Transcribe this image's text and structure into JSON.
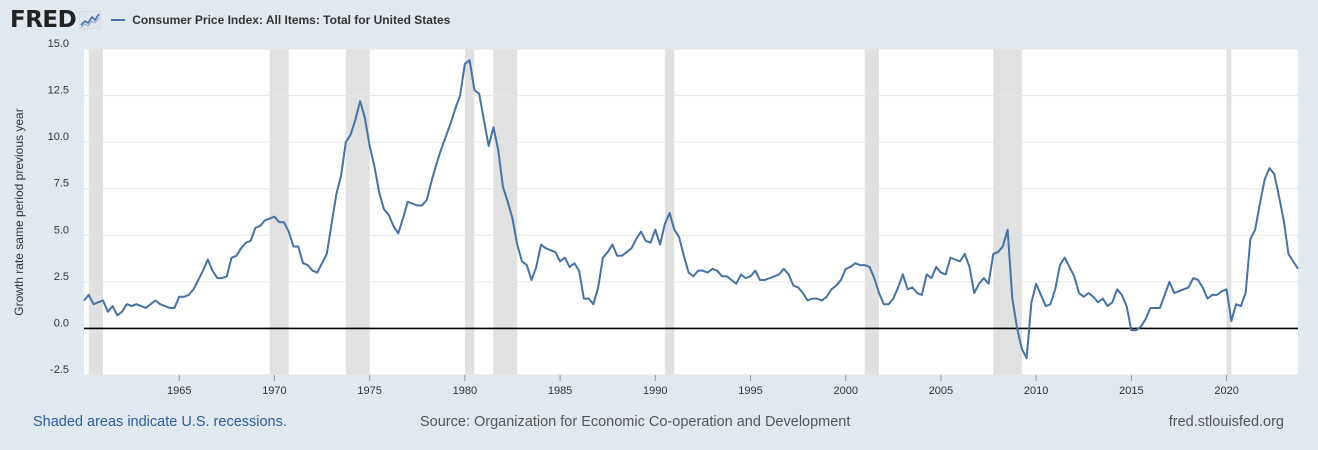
{
  "header": {
    "logo_text": "FRED",
    "logo_icon": "sparkline-chart-icon"
  },
  "footer": {
    "recessions_note": "Shaded areas indicate U.S. recessions.",
    "source": "Source: Organization for Economic Co-operation and Development",
    "url": "fred.stlouisfed.org"
  },
  "colors": {
    "background": "#e1e9f0",
    "plot_bg": "#ffffff",
    "series": "#4572a7",
    "recession": "#e1e1e1",
    "zero_line": "#000000"
  },
  "chart_data": {
    "type": "line",
    "title": "",
    "xlabel": "",
    "ylabel": "Growth rate same period previous year",
    "xlim": [
      1960.0,
      2023.75
    ],
    "ylim": [
      -2.5,
      15.0
    ],
    "yticks": [
      "15.0",
      "12.5",
      "10.0",
      "7.5",
      "5.0",
      "2.5",
      "0.0",
      "-2.5"
    ],
    "xticks": [
      "1965",
      "1970",
      "1975",
      "1980",
      "1985",
      "1990",
      "1995",
      "2000",
      "2005",
      "2010",
      "2015",
      "2020"
    ],
    "grid": true,
    "legend_position": "top-left",
    "recessions": [
      [
        1960.25,
        1961.0
      ],
      [
        1969.75,
        1970.75
      ],
      [
        1973.75,
        1975.0
      ],
      [
        1980.0,
        1980.5
      ],
      [
        1981.5,
        1982.75
      ],
      [
        1990.5,
        1991.0
      ],
      [
        2001.0,
        2001.75
      ],
      [
        2007.75,
        2009.25
      ],
      [
        2020.0,
        2020.25
      ]
    ],
    "series": [
      {
        "name": "Consumer Price Index: All Items: Total for United States",
        "values": [
          [
            1960.0,
            1.5
          ],
          [
            1960.25,
            1.8
          ],
          [
            1960.5,
            1.3
          ],
          [
            1960.75,
            1.4
          ],
          [
            1961.0,
            1.5
          ],
          [
            1961.25,
            0.9
          ],
          [
            1961.5,
            1.2
          ],
          [
            1961.75,
            0.7
          ],
          [
            1962.0,
            0.9
          ],
          [
            1962.25,
            1.3
          ],
          [
            1962.5,
            1.2
          ],
          [
            1962.75,
            1.3
          ],
          [
            1963.0,
            1.2
          ],
          [
            1963.25,
            1.1
          ],
          [
            1963.5,
            1.3
          ],
          [
            1963.75,
            1.5
          ],
          [
            1964.0,
            1.3
          ],
          [
            1964.25,
            1.2
          ],
          [
            1964.5,
            1.1
          ],
          [
            1964.75,
            1.1
          ],
          [
            1965.0,
            1.7
          ],
          [
            1965.25,
            1.7
          ],
          [
            1965.5,
            1.8
          ],
          [
            1965.75,
            2.1
          ],
          [
            1966.0,
            2.6
          ],
          [
            1966.25,
            3.1
          ],
          [
            1966.5,
            3.7
          ],
          [
            1966.75,
            3.1
          ],
          [
            1967.0,
            2.7
          ],
          [
            1967.25,
            2.7
          ],
          [
            1967.5,
            2.8
          ],
          [
            1967.75,
            3.8
          ],
          [
            1968.0,
            3.9
          ],
          [
            1968.25,
            4.3
          ],
          [
            1968.5,
            4.6
          ],
          [
            1968.75,
            4.7
          ],
          [
            1969.0,
            5.4
          ],
          [
            1969.25,
            5.5
          ],
          [
            1969.5,
            5.8
          ],
          [
            1969.75,
            5.9
          ],
          [
            1970.0,
            6.0
          ],
          [
            1970.25,
            5.7
          ],
          [
            1970.5,
            5.7
          ],
          [
            1970.75,
            5.2
          ],
          [
            1971.0,
            4.4
          ],
          [
            1971.25,
            4.4
          ],
          [
            1971.5,
            3.5
          ],
          [
            1971.75,
            3.4
          ],
          [
            1972.0,
            3.1
          ],
          [
            1972.25,
            3.0
          ],
          [
            1972.5,
            3.5
          ],
          [
            1972.75,
            4.0
          ],
          [
            1973.0,
            5.6
          ],
          [
            1973.25,
            7.2
          ],
          [
            1973.5,
            8.2
          ],
          [
            1973.75,
            10.0
          ],
          [
            1974.0,
            10.4
          ],
          [
            1974.25,
            11.2
          ],
          [
            1974.5,
            12.2
          ],
          [
            1974.75,
            11.3
          ],
          [
            1975.0,
            9.8
          ],
          [
            1975.25,
            8.7
          ],
          [
            1975.5,
            7.3
          ],
          [
            1975.75,
            6.4
          ],
          [
            1976.0,
            6.1
          ],
          [
            1976.25,
            5.5
          ],
          [
            1976.5,
            5.1
          ],
          [
            1976.75,
            5.9
          ],
          [
            1977.0,
            6.8
          ],
          [
            1977.25,
            6.7
          ],
          [
            1977.5,
            6.6
          ],
          [
            1977.75,
            6.6
          ],
          [
            1978.0,
            6.9
          ],
          [
            1978.25,
            7.9
          ],
          [
            1978.5,
            8.8
          ],
          [
            1978.75,
            9.6
          ],
          [
            1979.0,
            10.3
          ],
          [
            1979.25,
            11.0
          ],
          [
            1979.5,
            11.8
          ],
          [
            1979.75,
            12.5
          ],
          [
            1980.0,
            14.2
          ],
          [
            1980.25,
            14.4
          ],
          [
            1980.5,
            12.8
          ],
          [
            1980.75,
            12.6
          ],
          [
            1981.0,
            11.2
          ],
          [
            1981.25,
            9.8
          ],
          [
            1981.5,
            10.8
          ],
          [
            1981.75,
            9.6
          ],
          [
            1982.0,
            7.6
          ],
          [
            1982.25,
            6.8
          ],
          [
            1982.5,
            5.9
          ],
          [
            1982.75,
            4.5
          ],
          [
            1983.0,
            3.6
          ],
          [
            1983.25,
            3.4
          ],
          [
            1983.5,
            2.6
          ],
          [
            1983.75,
            3.3
          ],
          [
            1984.0,
            4.5
          ],
          [
            1984.25,
            4.3
          ],
          [
            1984.5,
            4.2
          ],
          [
            1984.75,
            4.1
          ],
          [
            1985.0,
            3.6
          ],
          [
            1985.25,
            3.8
          ],
          [
            1985.5,
            3.3
          ],
          [
            1985.75,
            3.5
          ],
          [
            1986.0,
            3.1
          ],
          [
            1986.25,
            1.6
          ],
          [
            1986.5,
            1.6
          ],
          [
            1986.75,
            1.3
          ],
          [
            1987.0,
            2.2
          ],
          [
            1987.25,
            3.8
          ],
          [
            1987.5,
            4.1
          ],
          [
            1987.75,
            4.5
          ],
          [
            1988.0,
            3.9
          ],
          [
            1988.25,
            3.9
          ],
          [
            1988.5,
            4.1
          ],
          [
            1988.75,
            4.3
          ],
          [
            1989.0,
            4.8
          ],
          [
            1989.25,
            5.2
          ],
          [
            1989.5,
            4.7
          ],
          [
            1989.75,
            4.6
          ],
          [
            1990.0,
            5.3
          ],
          [
            1990.25,
            4.5
          ],
          [
            1990.5,
            5.6
          ],
          [
            1990.75,
            6.2
          ],
          [
            1991.0,
            5.3
          ],
          [
            1991.25,
            4.9
          ],
          [
            1991.5,
            3.9
          ],
          [
            1991.75,
            3.0
          ],
          [
            1992.0,
            2.8
          ],
          [
            1992.25,
            3.1
          ],
          [
            1992.5,
            3.1
          ],
          [
            1992.75,
            3.0
          ],
          [
            1993.0,
            3.2
          ],
          [
            1993.25,
            3.1
          ],
          [
            1993.5,
            2.8
          ],
          [
            1993.75,
            2.8
          ],
          [
            1994.0,
            2.6
          ],
          [
            1994.25,
            2.4
          ],
          [
            1994.5,
            2.9
          ],
          [
            1994.75,
            2.7
          ],
          [
            1995.0,
            2.8
          ],
          [
            1995.25,
            3.1
          ],
          [
            1995.5,
            2.6
          ],
          [
            1995.75,
            2.6
          ],
          [
            1996.0,
            2.7
          ],
          [
            1996.25,
            2.8
          ],
          [
            1996.5,
            2.9
          ],
          [
            1996.75,
            3.2
          ],
          [
            1997.0,
            2.9
          ],
          [
            1997.25,
            2.3
          ],
          [
            1997.5,
            2.2
          ],
          [
            1997.75,
            1.9
          ],
          [
            1998.0,
            1.5
          ],
          [
            1998.25,
            1.6
          ],
          [
            1998.5,
            1.6
          ],
          [
            1998.75,
            1.5
          ],
          [
            1999.0,
            1.7
          ],
          [
            1999.25,
            2.1
          ],
          [
            1999.5,
            2.3
          ],
          [
            1999.75,
            2.6
          ],
          [
            2000.0,
            3.2
          ],
          [
            2000.25,
            3.3
          ],
          [
            2000.5,
            3.5
          ],
          [
            2000.75,
            3.4
          ],
          [
            2001.0,
            3.4
          ],
          [
            2001.25,
            3.3
          ],
          [
            2001.5,
            2.7
          ],
          [
            2001.75,
            1.9
          ],
          [
            2002.0,
            1.3
          ],
          [
            2002.25,
            1.3
          ],
          [
            2002.5,
            1.6
          ],
          [
            2002.75,
            2.2
          ],
          [
            2003.0,
            2.9
          ],
          [
            2003.25,
            2.1
          ],
          [
            2003.5,
            2.2
          ],
          [
            2003.75,
            1.9
          ],
          [
            2004.0,
            1.8
          ],
          [
            2004.25,
            2.9
          ],
          [
            2004.5,
            2.7
          ],
          [
            2004.75,
            3.3
          ],
          [
            2005.0,
            3.0
          ],
          [
            2005.25,
            2.9
          ],
          [
            2005.5,
            3.8
          ],
          [
            2005.75,
            3.7
          ],
          [
            2006.0,
            3.6
          ],
          [
            2006.25,
            4.0
          ],
          [
            2006.5,
            3.3
          ],
          [
            2006.75,
            1.9
          ],
          [
            2007.0,
            2.4
          ],
          [
            2007.25,
            2.7
          ],
          [
            2007.5,
            2.4
          ],
          [
            2007.75,
            4.0
          ],
          [
            2008.0,
            4.1
          ],
          [
            2008.25,
            4.4
          ],
          [
            2008.5,
            5.3
          ],
          [
            2008.75,
            1.6
          ],
          [
            2009.0,
            0.0
          ],
          [
            2009.25,
            -1.1
          ],
          [
            2009.5,
            -1.6
          ],
          [
            2009.75,
            1.4
          ],
          [
            2010.0,
            2.4
          ],
          [
            2010.25,
            1.8
          ],
          [
            2010.5,
            1.2
          ],
          [
            2010.75,
            1.3
          ],
          [
            2011.0,
            2.1
          ],
          [
            2011.25,
            3.4
          ],
          [
            2011.5,
            3.8
          ],
          [
            2011.75,
            3.3
          ],
          [
            2012.0,
            2.8
          ],
          [
            2012.25,
            1.9
          ],
          [
            2012.5,
            1.7
          ],
          [
            2012.75,
            1.9
          ],
          [
            2013.0,
            1.7
          ],
          [
            2013.25,
            1.4
          ],
          [
            2013.5,
            1.6
          ],
          [
            2013.75,
            1.2
          ],
          [
            2014.0,
            1.4
          ],
          [
            2014.25,
            2.1
          ],
          [
            2014.5,
            1.8
          ],
          [
            2014.75,
            1.2
          ],
          [
            2015.0,
            -0.1
          ],
          [
            2015.25,
            -0.1
          ],
          [
            2015.5,
            0.1
          ],
          [
            2015.75,
            0.5
          ],
          [
            2016.0,
            1.1
          ],
          [
            2016.25,
            1.1
          ],
          [
            2016.5,
            1.1
          ],
          [
            2016.75,
            1.8
          ],
          [
            2017.0,
            2.5
          ],
          [
            2017.25,
            1.9
          ],
          [
            2017.5,
            2.0
          ],
          [
            2017.75,
            2.1
          ],
          [
            2018.0,
            2.2
          ],
          [
            2018.25,
            2.7
          ],
          [
            2018.5,
            2.6
          ],
          [
            2018.75,
            2.2
          ],
          [
            2019.0,
            1.6
          ],
          [
            2019.25,
            1.8
          ],
          [
            2019.5,
            1.8
          ],
          [
            2019.75,
            2.0
          ],
          [
            2020.0,
            2.1
          ],
          [
            2020.25,
            0.4
          ],
          [
            2020.5,
            1.3
          ],
          [
            2020.75,
            1.2
          ],
          [
            2021.0,
            1.9
          ],
          [
            2021.25,
            4.8
          ],
          [
            2021.5,
            5.3
          ],
          [
            2021.75,
            6.7
          ],
          [
            2022.0,
            8.0
          ],
          [
            2022.25,
            8.6
          ],
          [
            2022.5,
            8.3
          ],
          [
            2022.75,
            7.1
          ],
          [
            2023.0,
            5.8
          ],
          [
            2023.25,
            4.0
          ],
          [
            2023.5,
            3.6
          ],
          [
            2023.75,
            3.2
          ]
        ]
      }
    ]
  }
}
